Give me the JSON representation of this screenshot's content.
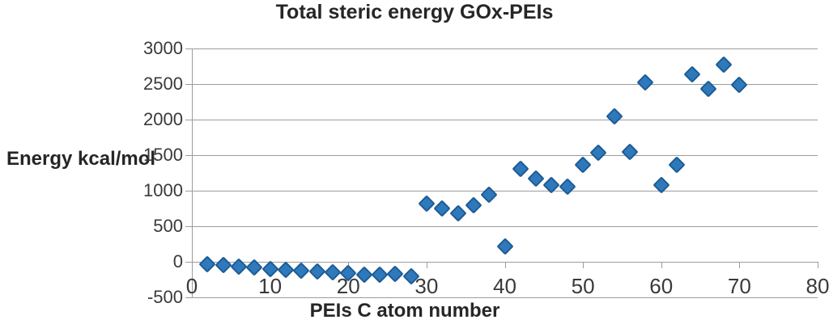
{
  "chart_data": {
    "type": "scatter",
    "title": "Total steric energy GOx-PEIs",
    "xlabel": "PEIs C atom number",
    "ylabel": "Energy kcal/mol",
    "xlim": [
      0,
      80
    ],
    "ylim": [
      -500,
      3000
    ],
    "xtick_labels": [
      "0",
      "10",
      "20",
      "30",
      "40",
      "50",
      "60",
      "70",
      "80"
    ],
    "ytick_labels": [
      "-500",
      "0",
      "500",
      "1000",
      "1500",
      "2000",
      "2500",
      "3000"
    ],
    "grid": "horizontal-only",
    "legend": "none",
    "marker": "diamond",
    "marker_color": "#2e79bc",
    "marker_border_color": "#1f5c94",
    "gridline_color": "#9c9c9c",
    "x": [
      2,
      4,
      6,
      8,
      10,
      12,
      14,
      16,
      18,
      20,
      22,
      24,
      26,
      28,
      30,
      32,
      34,
      36,
      38,
      40,
      42,
      44,
      46,
      48,
      50,
      52,
      54,
      56,
      58,
      60,
      62,
      64,
      66,
      68,
      70
    ],
    "y": [
      -30,
      -50,
      -70,
      -85,
      -100,
      -115,
      -130,
      -140,
      -150,
      -160,
      -185,
      -185,
      -175,
      -210,
      820,
      755,
      680,
      800,
      940,
      220,
      1310,
      1175,
      1075,
      1055,
      1360,
      1530,
      2050,
      1540,
      2520,
      1080,
      1365,
      2640,
      2430,
      2770,
      2490
    ]
  }
}
